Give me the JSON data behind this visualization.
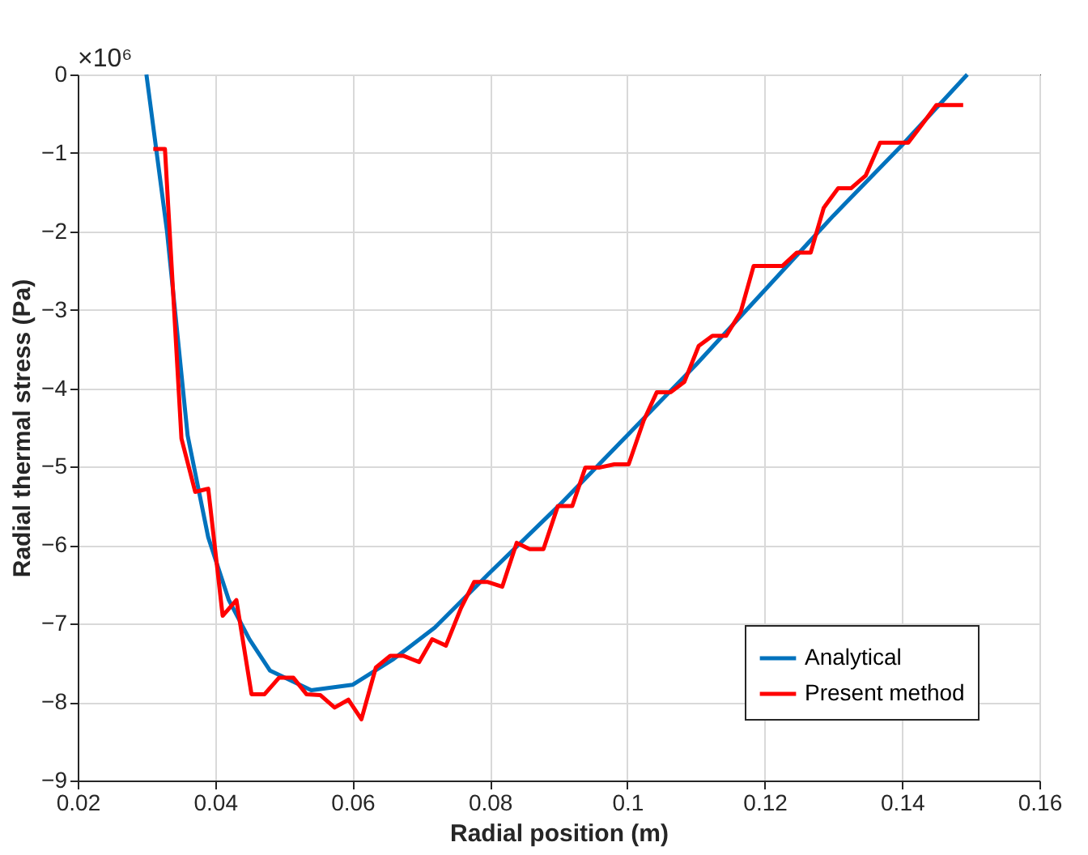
{
  "chart_data": {
    "type": "line",
    "xlabel": "Radial position (m)",
    "ylabel": "Radial thermal stress (Pa)",
    "annotations": [
      "×10⁶"
    ],
    "xlim": [
      0.02,
      0.16
    ],
    "xticks": [
      0.02,
      0.04,
      0.06,
      0.08,
      0.1,
      0.12,
      0.14,
      0.16
    ],
    "ylim": [
      -9,
      0
    ],
    "yticks": [
      -9,
      -8,
      -7,
      -6,
      -5,
      -4,
      -3,
      -2,
      -1,
      0
    ],
    "grid": true,
    "legend": "bottom right",
    "line_style": "solid",
    "marker": "none",
    "series": [
      {
        "name": "Analytical",
        "color": "#0072bd",
        "x": [
          0.03,
          0.033,
          0.036,
          0.039,
          0.042,
          0.045,
          0.048,
          0.054,
          0.06,
          0.066,
          0.072,
          0.08,
          0.09,
          0.1,
          0.11,
          0.12,
          0.13,
          0.14,
          0.1495
        ],
        "values": [
          0,
          -2.0,
          -4.6,
          -5.9,
          -6.7,
          -7.2,
          -7.6,
          -7.85,
          -7.78,
          -7.45,
          -7.05,
          -6.35,
          -5.5,
          -4.6,
          -3.7,
          -2.75,
          -1.8,
          -0.9,
          0
        ]
      },
      {
        "name": "Present method",
        "color": "#ff0000",
        "x": [
          0.031,
          0.0327,
          0.0351,
          0.0371,
          0.039,
          0.0411,
          0.0431,
          0.0453,
          0.0472,
          0.0493,
          0.0514,
          0.0533,
          0.0553,
          0.0574,
          0.0594,
          0.0613,
          0.0634,
          0.0655,
          0.0674,
          0.0697,
          0.0716,
          0.0736,
          0.0758,
          0.0777,
          0.0797,
          0.0818,
          0.0839,
          0.0858,
          0.0878,
          0.0899,
          0.092,
          0.0939,
          0.096,
          0.0981,
          0.1002,
          0.1024,
          0.1043,
          0.1063,
          0.1083,
          0.1104,
          0.1124,
          0.1144,
          0.1165,
          0.1184,
          0.1205,
          0.1226,
          0.1247,
          0.1267,
          0.1286,
          0.1307,
          0.1326,
          0.1347,
          0.1368,
          0.1387,
          0.1409,
          0.1429,
          0.145,
          0.1489
        ],
        "values": [
          -0.95,
          -0.95,
          -4.64,
          -5.32,
          -5.28,
          -6.9,
          -6.7,
          -7.9,
          -7.9,
          -7.69,
          -7.69,
          -7.9,
          -7.91,
          -8.07,
          -7.97,
          -8.22,
          -7.56,
          -7.41,
          -7.41,
          -7.49,
          -7.2,
          -7.28,
          -6.8,
          -6.47,
          -6.47,
          -6.53,
          -5.97,
          -6.05,
          -6.05,
          -5.5,
          -5.5,
          -5.01,
          -5.01,
          -4.97,
          -4.97,
          -4.41,
          -4.05,
          -4.05,
          -3.92,
          -3.46,
          -3.33,
          -3.33,
          -3.03,
          -2.44,
          -2.44,
          -2.44,
          -2.27,
          -2.27,
          -1.7,
          -1.45,
          -1.45,
          -1.29,
          -0.87,
          -0.87,
          -0.87,
          -0.64,
          -0.39,
          -0.39
        ]
      }
    ]
  }
}
